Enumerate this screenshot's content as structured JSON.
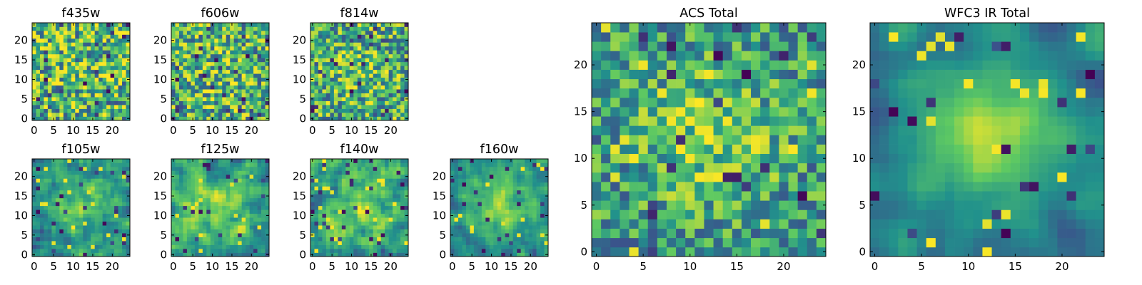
{
  "figure": {
    "colormap": "viridis",
    "colormap_stops": [
      "#440154",
      "#3b528b",
      "#21918c",
      "#5ec962",
      "#fde725"
    ]
  },
  "chart_data": [
    {
      "type": "heatmap",
      "title": "f435w",
      "grid_size": 25,
      "xticks": [
        0,
        5,
        10,
        15,
        20
      ],
      "yticks": [
        0,
        5,
        10,
        15,
        20
      ],
      "texture": "noise",
      "seed": 11,
      "smooth": 0,
      "center_peak": 0.05
    },
    {
      "type": "heatmap",
      "title": "f606w",
      "grid_size": 25,
      "xticks": [
        0,
        5,
        10,
        15,
        20
      ],
      "yticks": [
        0,
        5,
        10,
        15,
        20
      ],
      "texture": "noise",
      "seed": 23,
      "smooth": 0,
      "center_peak": 0.1
    },
    {
      "type": "heatmap",
      "title": "f814w",
      "grid_size": 25,
      "xticks": [
        0,
        5,
        10,
        15,
        20
      ],
      "yticks": [
        0,
        5,
        10,
        15,
        20
      ],
      "texture": "noise",
      "seed": 37,
      "smooth": 0,
      "center_peak": 0.15
    },
    {
      "type": "heatmap",
      "title": "f105w",
      "grid_size": 25,
      "xticks": [
        0,
        5,
        10,
        15,
        20
      ],
      "yticks": [
        0,
        5,
        10,
        15,
        20
      ],
      "texture": "blobs",
      "seed": 41,
      "smooth": 1,
      "center_peak": 0.35
    },
    {
      "type": "heatmap",
      "title": "f125w",
      "grid_size": 25,
      "xticks": [
        0,
        5,
        10,
        15,
        20
      ],
      "yticks": [
        0,
        5,
        10,
        15,
        20
      ],
      "texture": "blobs",
      "seed": 53,
      "smooth": 1,
      "center_peak": 0.25
    },
    {
      "type": "heatmap",
      "title": "f140w",
      "grid_size": 25,
      "xticks": [
        0,
        5,
        10,
        15,
        20
      ],
      "yticks": [
        0,
        5,
        10,
        15,
        20
      ],
      "texture": "blobs",
      "seed": 67,
      "smooth": 1,
      "center_peak": 0.25
    },
    {
      "type": "heatmap",
      "title": "f160w",
      "grid_size": 25,
      "xticks": [
        0,
        5,
        10,
        15,
        20
      ],
      "yticks": [
        0,
        5,
        10,
        15,
        20
      ],
      "texture": "blobs",
      "seed": 79,
      "smooth": 1,
      "center_peak": 0.45
    },
    {
      "type": "heatmap",
      "title": "ACS Total",
      "grid_size": 25,
      "xticks": [
        0,
        5,
        10,
        15,
        20
      ],
      "yticks": [
        0,
        5,
        10,
        15,
        20
      ],
      "texture": "patchy",
      "seed": 97,
      "smooth": 0,
      "center_peak": 0.3
    },
    {
      "type": "heatmap",
      "title": "WFC3 IR Total",
      "grid_size": 25,
      "xticks": [
        0,
        5,
        10,
        15,
        20
      ],
      "yticks": [
        0,
        5,
        10,
        15,
        20
      ],
      "texture": "smooth",
      "seed": 113,
      "smooth": 2,
      "center_peak": 0.55
    }
  ]
}
